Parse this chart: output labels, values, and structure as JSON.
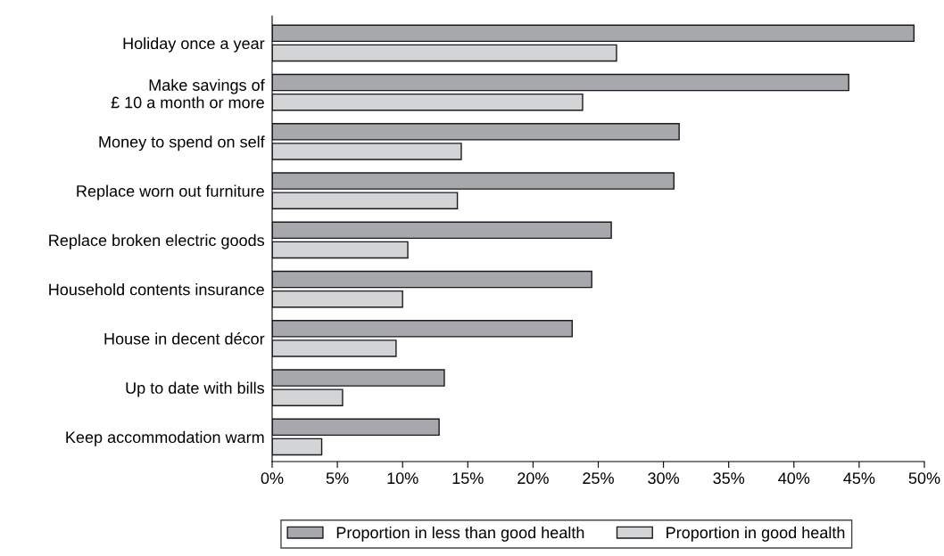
{
  "chart_data": {
    "type": "bar",
    "orientation": "horizontal",
    "categories": [
      "Holiday once a year",
      "Make savings of\n£ 10 a month or more",
      "Money to spend on self",
      "Replace worn out furniture",
      "Replace broken electric goods",
      "Household contents insurance",
      "House in decent décor",
      "Up to date with bills",
      "Keep accommodation warm"
    ],
    "series": [
      {
        "name": "Proportion in less than good health",
        "color": "#a7a8ab",
        "values": [
          49.2,
          44.2,
          31.2,
          30.8,
          26.0,
          24.5,
          23.0,
          13.2,
          12.8
        ]
      },
      {
        "name": "Proportion in good health",
        "color": "#d3d4d6",
        "values": [
          26.4,
          23.8,
          14.5,
          14.2,
          10.4,
          10.0,
          9.5,
          5.4,
          3.8
        ]
      }
    ],
    "xlim": [
      0,
      50
    ],
    "xticks": [
      {
        "value": 0,
        "label": "0%"
      },
      {
        "value": 5,
        "label": "5%"
      },
      {
        "value": 10,
        "label": "10%"
      },
      {
        "value": 15,
        "label": "15%"
      },
      {
        "value": 20,
        "label": "20%"
      },
      {
        "value": 25,
        "label": "25%"
      },
      {
        "value": 30,
        "label": "30%"
      },
      {
        "value": 35,
        "label": "35%"
      },
      {
        "value": 40,
        "label": "40%"
      },
      {
        "value": 45,
        "label": "45%"
      },
      {
        "value": 50,
        "label": "50%"
      }
    ],
    "grid": false,
    "legend": "bottom"
  }
}
